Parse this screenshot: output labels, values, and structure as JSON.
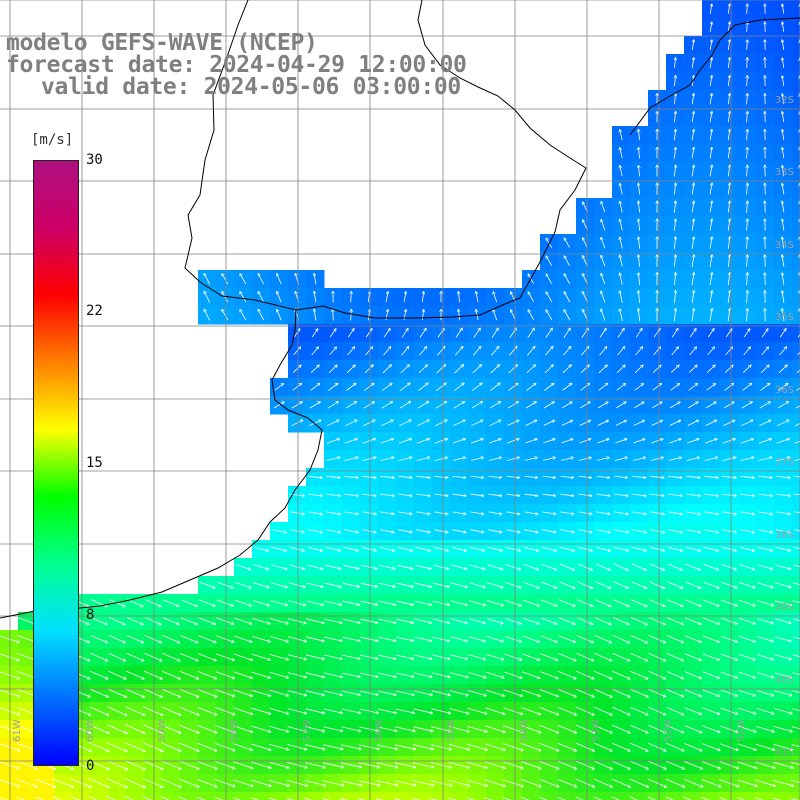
{
  "title": {
    "model": "modelo GEFS-WAVE (NCEP)",
    "forecast": "forecast date: 2024-04-29 12:00:00",
    "valid": "valid date: 2024-05-06 03:00:00"
  },
  "colorbar": {
    "unit": "[m/s]",
    "ticks": [
      "30",
      "22",
      "15",
      "8",
      "0"
    ],
    "colors": [
      "#0000ff",
      "#0070ff",
      "#00e0ff",
      "#00ff90",
      "#00ff00",
      "#ffff00",
      "#ff8000",
      "#ff0000",
      "#cc0066",
      "#b01080"
    ]
  },
  "grid": {
    "lat_labels": [
      "32S",
      "33S",
      "34S",
      "35S",
      "36S",
      "37S",
      "38S",
      "39S",
      "40S",
      "41S"
    ],
    "lon_labels": [
      "61W",
      "60W",
      "59W",
      "58W",
      "57W",
      "56W",
      "55W",
      "54W",
      "53W",
      "52W",
      "51W"
    ]
  },
  "map_layers": {
    "land_color": "#ffffff",
    "coastline_color": "#000000",
    "grid_color": "#808080"
  }
}
